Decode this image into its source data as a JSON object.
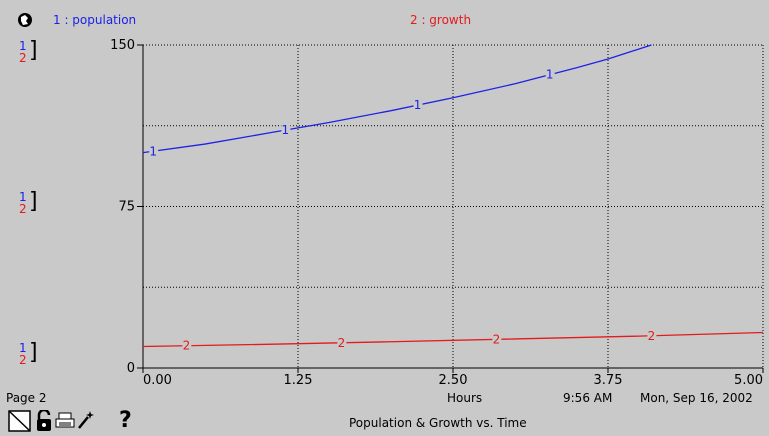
{
  "window": {
    "background": "#c9c9c9"
  },
  "header": {
    "legend": [
      {
        "label": "1 : population",
        "color": "#1c22e6"
      },
      {
        "label": "2 : growth",
        "color": "#e31b1b"
      }
    ]
  },
  "axis_markers": [
    {
      "top": "1",
      "bottom": "2"
    },
    {
      "top": "1",
      "bottom": "2"
    },
    {
      "top": "1",
      "bottom": "2"
    }
  ],
  "footer": {
    "page": "Page 2",
    "x_unit": "Hours",
    "time": "9:56 AM",
    "date": "Mon, Sep 16, 2002",
    "title": "Population & Growth vs. Time",
    "help": "?"
  },
  "chart_data": {
    "type": "line",
    "title": "Population & Growth vs. Time",
    "xlabel": "Hours",
    "ylabel": "",
    "xlim": [
      0,
      5
    ],
    "ylim": [
      0,
      150
    ],
    "x_ticks": [
      "0.00",
      "1.25",
      "2.50",
      "3.75",
      "5.00"
    ],
    "y_ticks": [
      "0",
      "75",
      "150"
    ],
    "grid": true,
    "series": [
      {
        "name": "population",
        "marker": "1",
        "color": "#1c22e6",
        "x": [
          0,
          0.5,
          1.0,
          1.25,
          1.5,
          2.0,
          2.5,
          3.0,
          3.5,
          3.75,
          4.1
        ],
        "values": [
          100,
          104,
          109,
          111.5,
          114,
          119.5,
          125.5,
          132,
          139.5,
          143.5,
          150
        ]
      },
      {
        "name": "growth",
        "marker": "2",
        "color": "#e31b1b",
        "x": [
          0,
          1,
          2,
          3,
          4,
          5
        ],
        "values": [
          10.0,
          11.0,
          12.2,
          13.5,
          14.8,
          16.5
        ]
      }
    ]
  }
}
